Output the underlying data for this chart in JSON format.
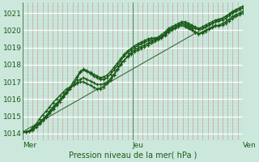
{
  "bg_color": "#cce8dc",
  "grid_color_major_h": "#ffffff",
  "grid_color_minor_v": "#e8a0a0",
  "line_color": "#1a5c1a",
  "x_tick_labels": [
    "Mer",
    "Jeu",
    "Ven"
  ],
  "ylabel": "Pression niveau de la mer( hPa )",
  "ylim": [
    1013.6,
    1021.6
  ],
  "yticks": [
    1014,
    1015,
    1016,
    1017,
    1018,
    1019,
    1020,
    1021
  ],
  "num_points": 66,
  "series": {
    "line1": [
      1014.1,
      1014.1,
      1014.15,
      1014.2,
      1014.35,
      1014.55,
      1014.75,
      1014.95,
      1015.15,
      1015.4,
      1015.65,
      1015.85,
      1016.1,
      1016.35,
      1016.6,
      1016.85,
      1017.15,
      1017.55,
      1017.7,
      1017.6,
      1017.5,
      1017.35,
      1017.25,
      1017.15,
      1017.15,
      1017.25,
      1017.45,
      1017.7,
      1017.95,
      1018.25,
      1018.5,
      1018.7,
      1018.85,
      1019.0,
      1019.1,
      1019.2,
      1019.3,
      1019.4,
      1019.45,
      1019.45,
      1019.5,
      1019.6,
      1019.75,
      1019.95,
      1020.1,
      1020.2,
      1020.3,
      1020.4,
      1020.4,
      1020.3,
      1020.2,
      1020.1,
      1020.05,
      1020.1,
      1020.2,
      1020.3,
      1020.4,
      1020.5,
      1020.55,
      1020.6,
      1020.7,
      1020.85,
      1021.0,
      1021.1,
      1021.2,
      1021.3
    ],
    "line2": [
      1014.1,
      1014.1,
      1014.15,
      1014.25,
      1014.45,
      1014.65,
      1014.85,
      1015.05,
      1015.3,
      1015.55,
      1015.75,
      1015.95,
      1016.15,
      1016.4,
      1016.6,
      1016.8,
      1016.95,
      1017.15,
      1017.25,
      1017.15,
      1017.05,
      1016.95,
      1016.85,
      1016.85,
      1016.9,
      1017.0,
      1017.2,
      1017.45,
      1017.75,
      1018.05,
      1018.25,
      1018.45,
      1018.6,
      1018.75,
      1018.85,
      1018.95,
      1019.05,
      1019.15,
      1019.25,
      1019.35,
      1019.45,
      1019.55,
      1019.7,
      1019.9,
      1020.0,
      1020.1,
      1020.2,
      1020.3,
      1020.2,
      1020.1,
      1020.0,
      1019.9,
      1019.8,
      1019.9,
      1020.0,
      1020.1,
      1020.2,
      1020.3,
      1020.25,
      1020.3,
      1020.4,
      1020.55,
      1020.7,
      1020.8,
      1020.9,
      1021.0
    ],
    "line3": [
      1014.1,
      1014.1,
      1014.15,
      1014.25,
      1014.45,
      1014.6,
      1014.8,
      1015.0,
      1015.25,
      1015.45,
      1015.7,
      1015.95,
      1016.2,
      1016.45,
      1016.7,
      1017.0,
      1017.3,
      1017.6,
      1017.75,
      1017.65,
      1017.55,
      1017.45,
      1017.35,
      1017.25,
      1017.3,
      1017.4,
      1017.6,
      1017.85,
      1018.1,
      1018.35,
      1018.6,
      1018.8,
      1018.95,
      1019.1,
      1019.2,
      1019.3,
      1019.4,
      1019.5,
      1019.55,
      1019.55,
      1019.6,
      1019.75,
      1019.9,
      1020.1,
      1020.2,
      1020.3,
      1020.4,
      1020.5,
      1020.5,
      1020.4,
      1020.3,
      1020.2,
      1020.1,
      1020.2,
      1020.3,
      1020.4,
      1020.5,
      1020.6,
      1020.65,
      1020.7,
      1020.8,
      1020.95,
      1021.1,
      1021.2,
      1021.3,
      1021.4
    ],
    "line4": [
      1014.1,
      1014.1,
      1014.15,
      1014.35,
      1014.55,
      1014.85,
      1015.1,
      1015.3,
      1015.55,
      1015.8,
      1016.0,
      1016.2,
      1016.4,
      1016.6,
      1016.7,
      1016.8,
      1016.9,
      1017.0,
      1017.0,
      1016.9,
      1016.8,
      1016.7,
      1016.6,
      1016.6,
      1016.7,
      1016.9,
      1017.1,
      1017.4,
      1017.7,
      1018.0,
      1018.25,
      1018.5,
      1018.7,
      1018.85,
      1018.95,
      1019.05,
      1019.15,
      1019.25,
      1019.35,
      1019.45,
      1019.55,
      1019.65,
      1019.8,
      1020.0,
      1020.1,
      1020.2,
      1020.3,
      1020.4,
      1020.3,
      1020.2,
      1020.1,
      1019.9,
      1019.8,
      1019.85,
      1019.95,
      1020.05,
      1020.15,
      1020.25,
      1020.3,
      1020.4,
      1020.5,
      1020.65,
      1020.8,
      1020.9,
      1021.0,
      1021.1
    ],
    "trend_y": [
      1014.1,
      1021.4
    ]
  }
}
